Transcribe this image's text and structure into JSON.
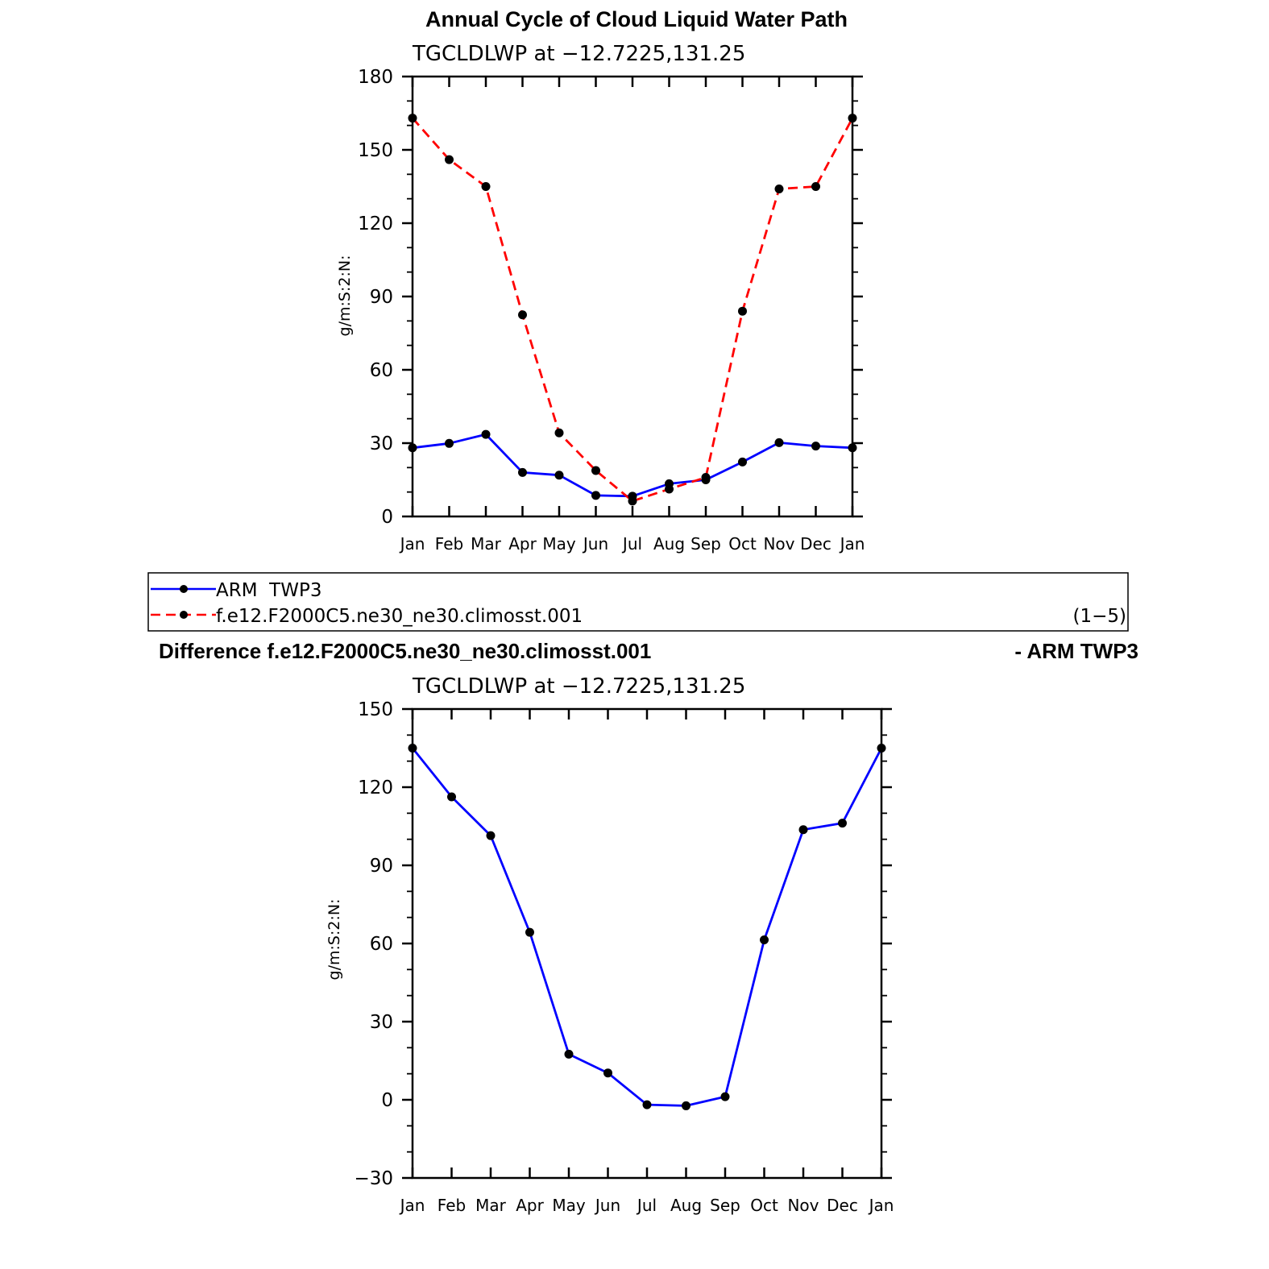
{
  "figure": {
    "title": "Annual Cycle of Cloud Liquid Water Path"
  },
  "chart_data": [
    {
      "type": "line",
      "subtitle": "TGCLDLWP  at  −12.7225,131.25",
      "ylabel": "g/m:S:2:N:",
      "xlabel": "",
      "categories": [
        "Jan",
        "Feb",
        "Mar",
        "Apr",
        "May",
        "Jun",
        "Jul",
        "Aug",
        "Sep",
        "Oct",
        "Nov",
        "Dec",
        "Jan"
      ],
      "ylim": [
        0,
        180
      ],
      "yticks": [
        0,
        30,
        60,
        90,
        120,
        150,
        180
      ],
      "grid": false,
      "series": [
        {
          "name": "ARM  TWP3",
          "color": "#0000ff",
          "dash": "solid",
          "values": [
            28.1,
            29.9,
            33.6,
            18.0,
            16.9,
            8.6,
            8.3,
            13.4,
            15.0,
            22.3,
            30.2,
            28.8,
            28.1
          ]
        },
        {
          "name": "f.e12.F2000C5.ne30_ne30.climosst.001",
          "color": "#ff0000",
          "dash": "dashed",
          "values": [
            163.0,
            146.0,
            135.0,
            82.5,
            34.2,
            18.8,
            6.3,
            11.2,
            16.0,
            84.0,
            134.0,
            135.0,
            163.0
          ]
        }
      ],
      "legend": {
        "position": "below",
        "note": "(1−5)"
      }
    },
    {
      "type": "line",
      "title_left": "Difference f.e12.F2000C5.ne30_ne30.climosst.001",
      "title_right": "- ARM TWP3",
      "subtitle": "TGCLDLWP  at  −12.7225,131.25",
      "ylabel": "g/m:S:2:N:",
      "xlabel": "",
      "categories": [
        "Jan",
        "Feb",
        "Mar",
        "Apr",
        "May",
        "Jun",
        "Jul",
        "Aug",
        "Sep",
        "Oct",
        "Nov",
        "Dec",
        "Jan"
      ],
      "ylim": [
        -30,
        150
      ],
      "yticks": [
        -30,
        0,
        30,
        60,
        90,
        120,
        150
      ],
      "grid": false,
      "series": [
        {
          "color": "#0000ff",
          "dash": "solid",
          "values": [
            135.0,
            116.3,
            101.4,
            64.3,
            17.5,
            10.3,
            -1.9,
            -2.3,
            1.2,
            61.4,
            103.7,
            106.2,
            135.0
          ]
        }
      ]
    }
  ]
}
